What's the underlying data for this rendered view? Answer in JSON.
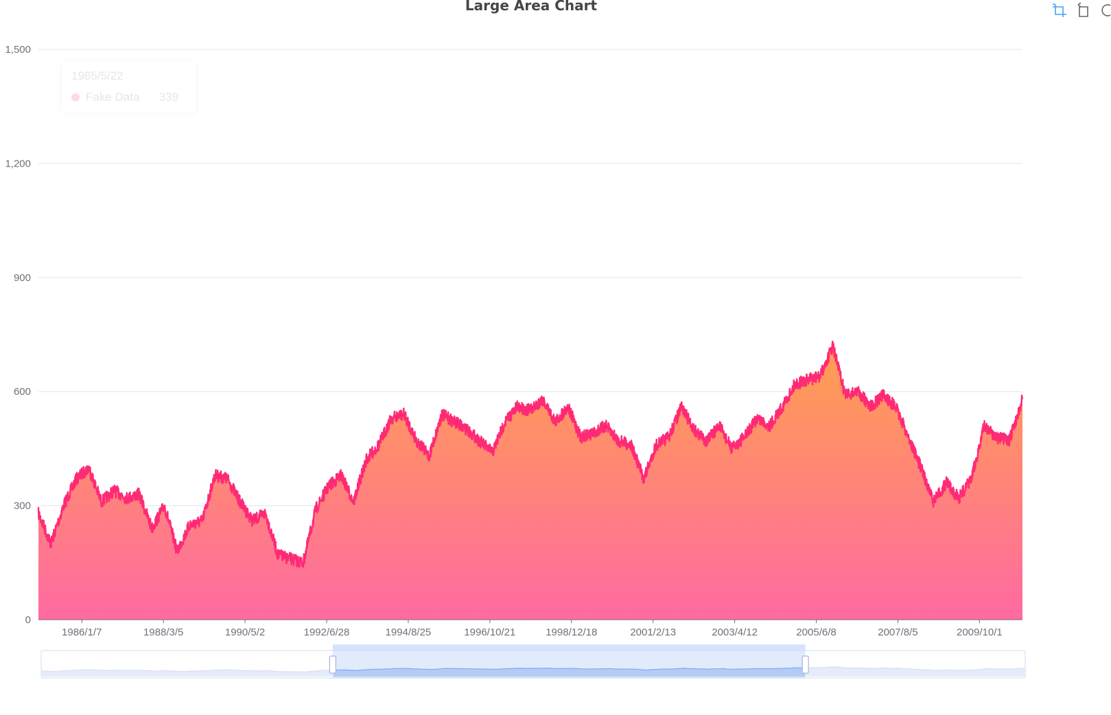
{
  "toolbox": {
    "icons": [
      "zoom-icon",
      "zoom-reset-icon",
      "restore-icon"
    ]
  },
  "tooltip": {
    "date": "1985/5/22",
    "series_name": "Fake Data",
    "value": "339"
  },
  "chart_data": {
    "type": "area",
    "title": "Large Area Chart",
    "xlabel": "",
    "ylabel": "",
    "ylim": [
      0,
      1500
    ],
    "yticks": [
      "0",
      "300",
      "600",
      "900",
      "1,200",
      "1,500"
    ],
    "xticks": [
      "1986/1/7",
      "1988/3/5",
      "1990/5/2",
      "1992/6/28",
      "1994/8/25",
      "1996/10/21",
      "1998/12/18",
      "2001/2/13",
      "2003/4/12",
      "2005/6/8",
      "2007/8/5",
      "2009/10/1"
    ],
    "x_range": [
      "1984/11/14",
      "2010/11/20"
    ],
    "grid": true,
    "line_color": "#ff2a76",
    "fill_gradient": [
      "#ffa04e",
      "#ff6aa2"
    ],
    "series": [
      {
        "name": "Fake Data",
        "x": [
          "1984/11/14",
          "1985/3/15",
          "1985/7/15",
          "1985/11/15",
          "1986/3/15",
          "1986/7/15",
          "1986/11/15",
          "1987/3/15",
          "1987/7/15",
          "1987/11/15",
          "1988/3/15",
          "1988/7/15",
          "1988/11/15",
          "1989/3/15",
          "1989/7/15",
          "1989/11/15",
          "1990/3/15",
          "1990/7/15",
          "1990/11/15",
          "1991/3/15",
          "1991/7/15",
          "1991/11/15",
          "1992/3/15",
          "1992/7/15",
          "1992/11/15",
          "1993/3/15",
          "1993/7/15",
          "1993/11/15",
          "1994/3/15",
          "1994/7/15",
          "1994/11/15",
          "1995/3/15",
          "1995/7/15",
          "1995/11/15",
          "1996/3/15",
          "1996/7/15",
          "1996/11/15",
          "1997/3/15",
          "1997/7/15",
          "1997/11/15",
          "1998/3/15",
          "1998/7/15",
          "1998/11/15",
          "1999/3/15",
          "1999/7/15",
          "1999/11/15",
          "2000/3/15",
          "2000/7/15",
          "2000/11/15",
          "2001/3/15",
          "2001/7/15",
          "2001/11/15",
          "2002/3/15",
          "2002/7/15",
          "2002/11/15",
          "2003/3/15",
          "2003/7/15",
          "2003/11/15",
          "2004/3/15",
          "2004/7/15",
          "2004/11/15",
          "2005/3/15",
          "2005/7/15",
          "2005/11/15",
          "2006/3/15",
          "2006/7/15",
          "2006/11/15",
          "2007/3/15",
          "2007/7/15",
          "2007/11/15",
          "2008/3/15",
          "2008/7/15",
          "2008/11/15",
          "2009/3/15",
          "2009/7/15",
          "2009/11/15",
          "2010/3/15",
          "2010/7/15",
          "2010/11/20"
        ],
        "values": [
          280,
          200,
          300,
          370,
          400,
          310,
          340,
          320,
          330,
          240,
          300,
          180,
          250,
          260,
          380,
          370,
          310,
          260,
          280,
          170,
          160,
          150,
          290,
          350,
          380,
          310,
          420,
          460,
          530,
          540,
          470,
          430,
          540,
          520,
          500,
          470,
          440,
          520,
          560,
          550,
          580,
          520,
          560,
          480,
          490,
          510,
          470,
          460,
          370,
          460,
          480,
          560,
          500,
          470,
          510,
          450,
          480,
          530,
          510,
          560,
          620,
          630,
          640,
          720,
          590,
          600,
          560,
          590,
          560,
          480,
          400,
          310,
          360,
          320,
          370,
          510,
          480,
          470,
          580
        ]
      }
    ],
    "dataZoom": {
      "start_percent": 29.6,
      "end_percent": 77.7
    }
  }
}
